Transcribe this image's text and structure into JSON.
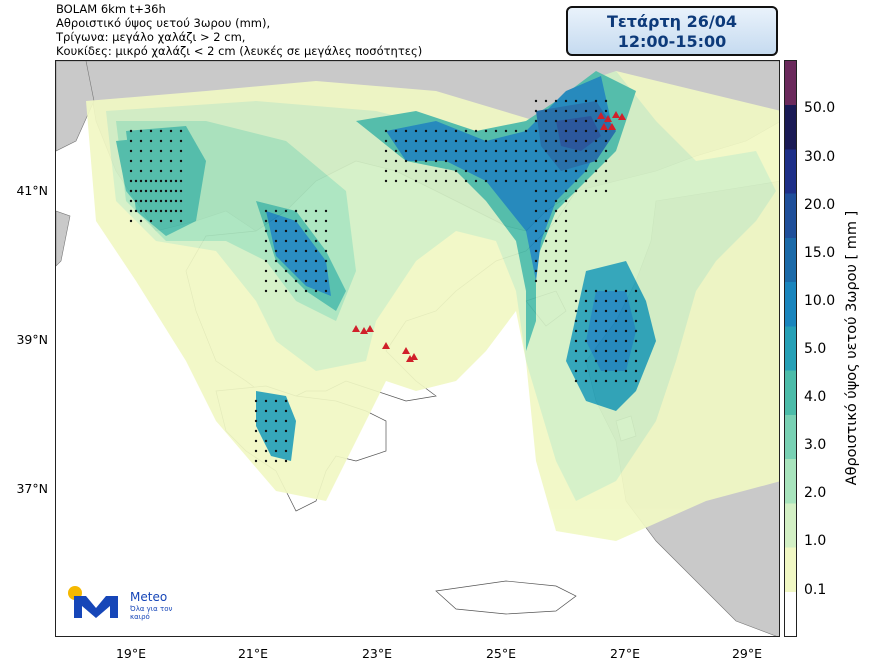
{
  "header": {
    "line1": "BOLAM 6km t+36h",
    "line2": "Αθροιστικό ύψος υετού 3ωρου (mm),",
    "line3": "Τρίγωνα: μεγάλο χαλάζι > 2 cm,",
    "line4": "Κουκίδες: μικρό χαλάζι < 2 cm (λευκές σε μεγάλες ποσότητες)"
  },
  "datebox": {
    "day": "Τετάρτη 26/04",
    "time": "12:00-15:00"
  },
  "axes": {
    "lat_labels": [
      "41°N",
      "39°N",
      "37°N"
    ],
    "lon_labels": [
      "19°E",
      "21°E",
      "23°E",
      "25°E",
      "27°E",
      "29°E"
    ]
  },
  "colorbar": {
    "label": "Αθροιστικό ύψος υετού 3ωρου [ mm ]",
    "ticks": [
      "50.0",
      "30.0",
      "20.0",
      "15.0",
      "10.0",
      "5.0",
      "4.0",
      "3.0",
      "2.0",
      "1.0",
      "0.1"
    ],
    "colors": [
      "#ffffff",
      "#f1f8c4",
      "#d3f0c5",
      "#a8e4bd",
      "#79d1b4",
      "#4cbca9",
      "#26a0b6",
      "#1a85bd",
      "#1c6aa8",
      "#1f4f9a",
      "#1e2f88",
      "#1a1a55",
      "#6b2a5c"
    ]
  },
  "logo": {
    "name": "Meteo",
    "slogan": "Όλα για τον καιρό"
  },
  "map_colors": {
    "sea": "#ffffff",
    "land": "#c9c9c9",
    "greece": "#ffffff"
  }
}
